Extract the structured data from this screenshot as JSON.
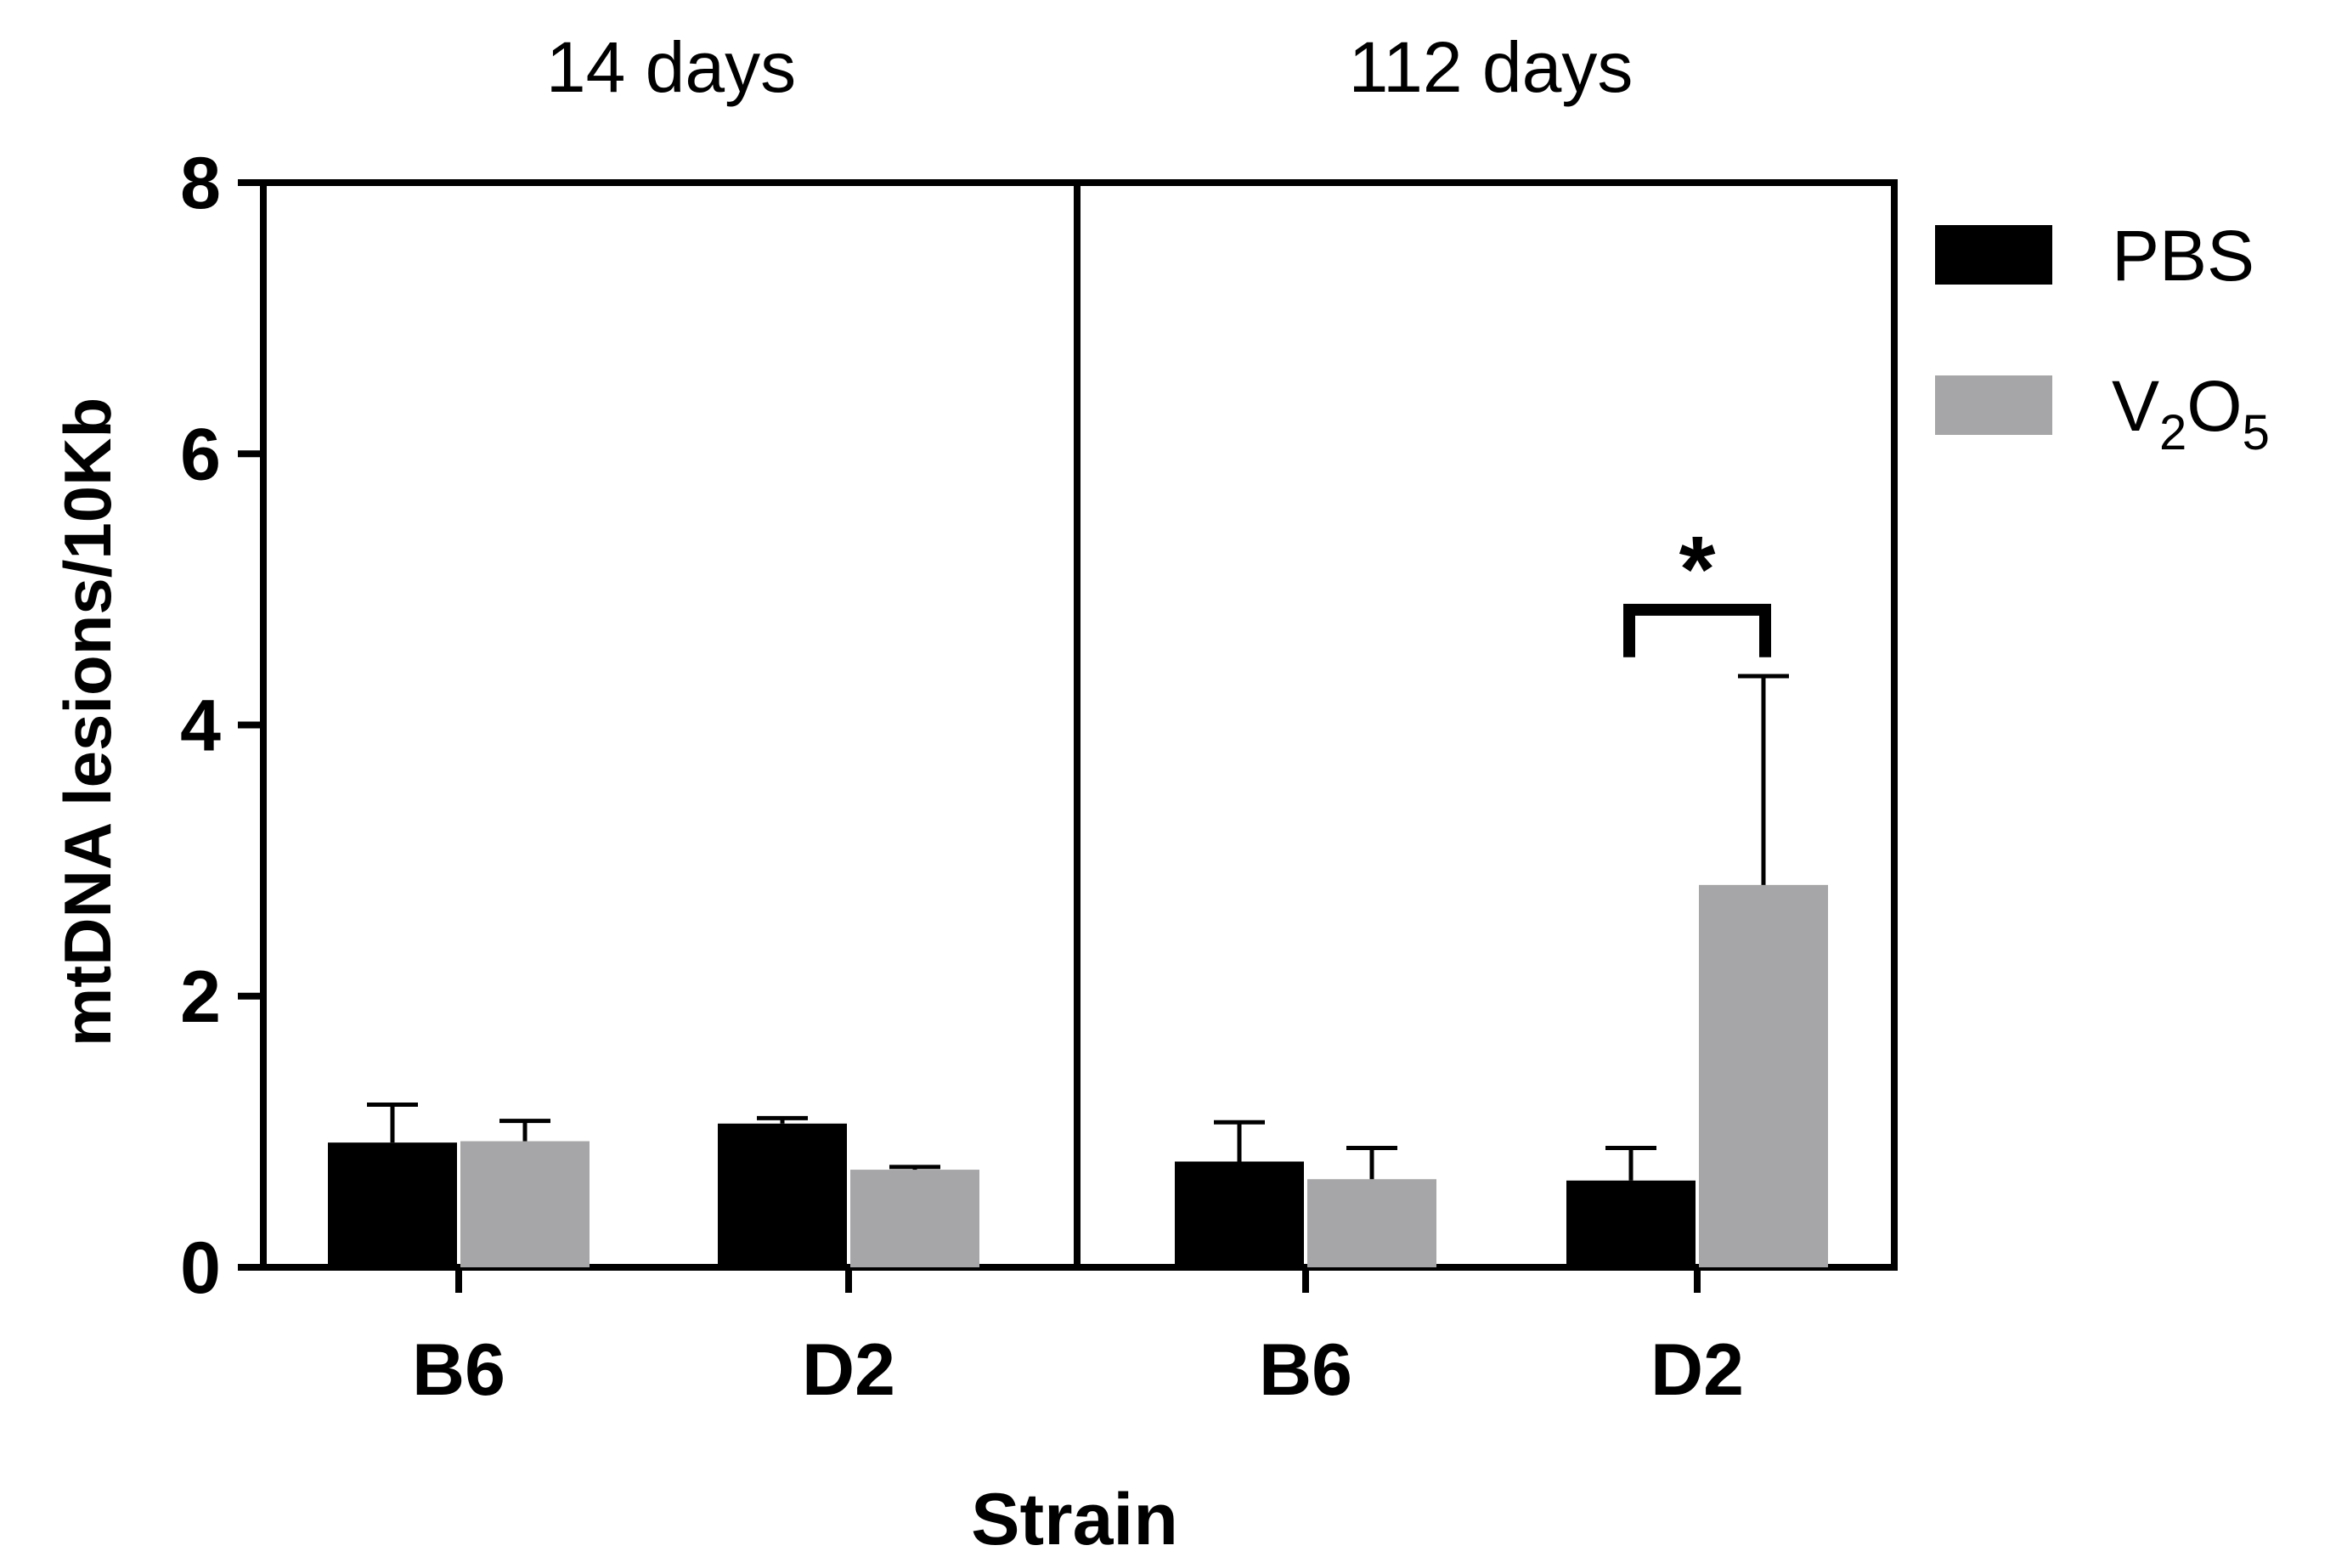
{
  "chart_data": {
    "type": "bar",
    "ylabel": "mtDNA lesions/10Kb",
    "xlabel": "Strain",
    "ylim": [
      0,
      8
    ],
    "yticks": [
      0,
      2,
      4,
      6,
      8
    ],
    "grid": false,
    "legend_position": "right",
    "colors": {
      "PBS": "#000000",
      "V2O5": "#a6a6a8"
    },
    "legend": [
      {
        "key": "PBS",
        "label": "PBS"
      },
      {
        "key": "V2O5",
        "label_main": "V",
        "label_sub1": "2",
        "label_mid": "O",
        "label_sub2": "5"
      }
    ],
    "panels": [
      {
        "title": "14 days",
        "categories": [
          "B6",
          "D2"
        ],
        "series": [
          {
            "key": "PBS",
            "values": [
              0.92,
              1.06
            ],
            "errors": [
              0.28,
              0.04
            ]
          },
          {
            "key": "V2O5",
            "values": [
              0.93,
              0.72
            ],
            "errors": [
              0.15,
              0.02
            ]
          }
        ]
      },
      {
        "title": "112 days",
        "categories": [
          "B6",
          "D2"
        ],
        "series": [
          {
            "key": "PBS",
            "values": [
              0.78,
              0.64
            ],
            "errors": [
              0.29,
              0.24
            ]
          },
          {
            "key": "V2O5",
            "values": [
              0.65,
              2.82
            ],
            "errors": [
              0.23,
              1.54
            ]
          }
        ]
      }
    ],
    "annotations": [
      {
        "panel": 1,
        "category": 1,
        "text": "*"
      }
    ]
  }
}
